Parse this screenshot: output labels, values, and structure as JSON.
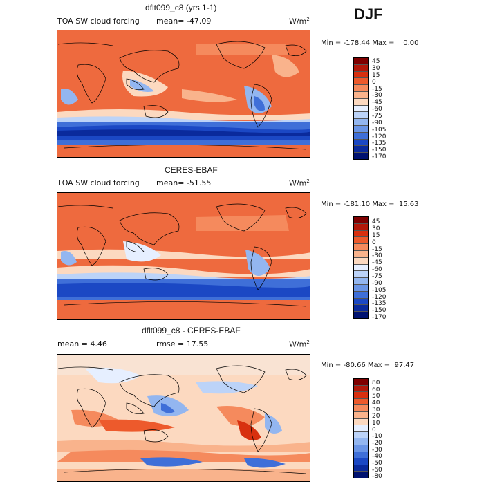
{
  "season": "DJF",
  "panels": [
    {
      "title": "dflt099_c8 (yrs 1-1)",
      "left_label": "TOA SW cloud forcing",
      "mid_label": "mean= -47.09",
      "units": "W/m",
      "units_sup": "2",
      "minmax": "Min = -178.44 Max =    0.00",
      "colorbar": {
        "colors": [
          "#7f0000",
          "#b2180a",
          "#d8300f",
          "#ed5a2c",
          "#f58a5d",
          "#f9b38c",
          "#fcd9c0",
          "#e6efff",
          "#bcd3f8",
          "#93b6f0",
          "#6a95e6",
          "#3f6fd8",
          "#1b48c4",
          "#0a2a9c",
          "#001270"
        ],
        "labels": [
          "45",
          "30",
          "15",
          "0",
          "-15",
          "-30",
          "-45",
          "-60",
          "-75",
          "-90",
          "-105",
          "-120",
          "-135",
          "-150",
          "-170"
        ]
      }
    },
    {
      "title": "CERES-EBAF",
      "left_label": "TOA SW cloud forcing",
      "mid_label": "mean= -51.55",
      "units": "W/m",
      "units_sup": "2",
      "minmax": "Min = -181.10 Max =  15.63",
      "colorbar": {
        "colors": [
          "#7f0000",
          "#b2180a",
          "#d8300f",
          "#ed5a2c",
          "#f58a5d",
          "#f9b38c",
          "#fcd9c0",
          "#e6efff",
          "#bcd3f8",
          "#93b6f0",
          "#6a95e6",
          "#3f6fd8",
          "#1b48c4",
          "#0a2a9c",
          "#001270"
        ],
        "labels": [
          "45",
          "30",
          "15",
          "0",
          "-15",
          "-30",
          "-45",
          "-60",
          "-75",
          "-90",
          "-105",
          "-120",
          "-135",
          "-150",
          "-170"
        ]
      }
    },
    {
      "title": "dflt099_c8 - CERES-EBAF",
      "left_label": "mean =    4.46",
      "mid_label": "rmse =   17.55",
      "units": "W/m",
      "units_sup": "2",
      "minmax": "Min = -80.66 Max =  97.47",
      "colorbar": {
        "colors": [
          "#7f0000",
          "#b2180a",
          "#d8300f",
          "#ed5a2c",
          "#f58a5d",
          "#f9b38c",
          "#fcd9c0",
          "#e6efff",
          "#bcd3f8",
          "#93b6f0",
          "#6a95e6",
          "#3f6fd8",
          "#1b48c4",
          "#0a2a9c",
          "#001270"
        ],
        "labels": [
          "80",
          "60",
          "50",
          "40",
          "30",
          "20",
          "10",
          "0",
          "-10",
          "-20",
          "-30",
          "-40",
          "-50",
          "-60",
          "-80"
        ]
      }
    }
  ]
}
